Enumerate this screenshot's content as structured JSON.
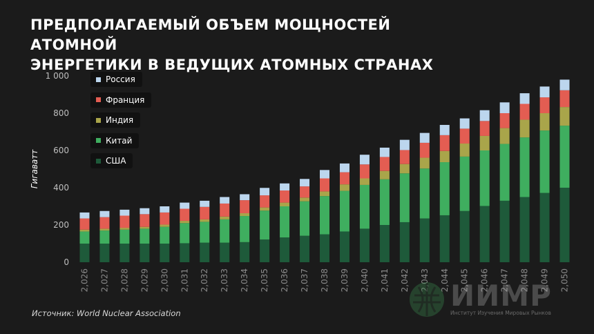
{
  "title": {
    "line1": "ПРЕДПОЛАГАЕМЫЙ ОБЪЕМ МОЩНОСТЕЙ АТОМНОЙ",
    "line2": "ЭНЕРГЕТИКИ В ВЕДУЩИХ АТОМНЫХ СТРАНАХ"
  },
  "source": "Источник: World Nuclear Association",
  "logo": {
    "text": "ИИМР",
    "subtitle": "Институт Изучения Мировых Рынков"
  },
  "chart_data": {
    "type": "bar",
    "stacked": true,
    "ylabel": "Гигаватт",
    "ylim": [
      0,
      1000
    ],
    "yticks": [
      0,
      200,
      400,
      600,
      800,
      1000
    ],
    "ytick_labels": [
      "0",
      "200",
      "400",
      "600",
      "800",
      "1 000"
    ],
    "grid": false,
    "legend_position": "top-left",
    "categories": [
      "2,026",
      "2,027",
      "2,028",
      "2,029",
      "2,030",
      "2,031",
      "2,032",
      "2,033",
      "2,034",
      "2,035",
      "2,036",
      "2,037",
      "2,038",
      "2,039",
      "2,040",
      "2,041",
      "2,042",
      "2,043",
      "2,044",
      "2,045",
      "2,046",
      "2,047",
      "2,048",
      "2,049",
      "2,050"
    ],
    "series": [
      {
        "name": "США",
        "color": "#1e5a3a",
        "values": [
          100,
          100,
          100,
          100,
          100,
          102,
          105,
          105,
          108,
          122,
          133,
          142,
          150,
          165,
          180,
          200,
          215,
          235,
          252,
          275,
          302,
          330,
          350,
          372,
          400
        ]
      },
      {
        "name": "Китай",
        "color": "#3fae5f",
        "values": [
          65,
          70,
          75,
          80,
          90,
          108,
          112,
          125,
          140,
          155,
          167,
          185,
          205,
          218,
          235,
          245,
          262,
          268,
          285,
          292,
          298,
          305,
          320,
          335,
          333
        ]
      },
      {
        "name": "Индия",
        "color": "#a9a54a",
        "values": [
          10,
          10,
          10,
          10,
          12,
          12,
          13,
          15,
          15,
          17,
          20,
          20,
          25,
          35,
          35,
          45,
          50,
          58,
          60,
          70,
          78,
          85,
          95,
          93,
          100
        ]
      },
      {
        "name": "Франция",
        "color": "#e35d52",
        "values": [
          60,
          62,
          65,
          68,
          65,
          65,
          67,
          70,
          70,
          65,
          65,
          60,
          70,
          65,
          75,
          75,
          75,
          80,
          85,
          80,
          80,
          80,
          85,
          85,
          90
        ]
      },
      {
        "name": "Россия",
        "color": "#bcd6ee",
        "values": [
          32,
          33,
          32,
          32,
          33,
          33,
          33,
          35,
          32,
          40,
          38,
          40,
          45,
          47,
          52,
          50,
          55,
          53,
          55,
          55,
          58,
          58,
          57,
          58,
          57
        ]
      }
    ]
  }
}
